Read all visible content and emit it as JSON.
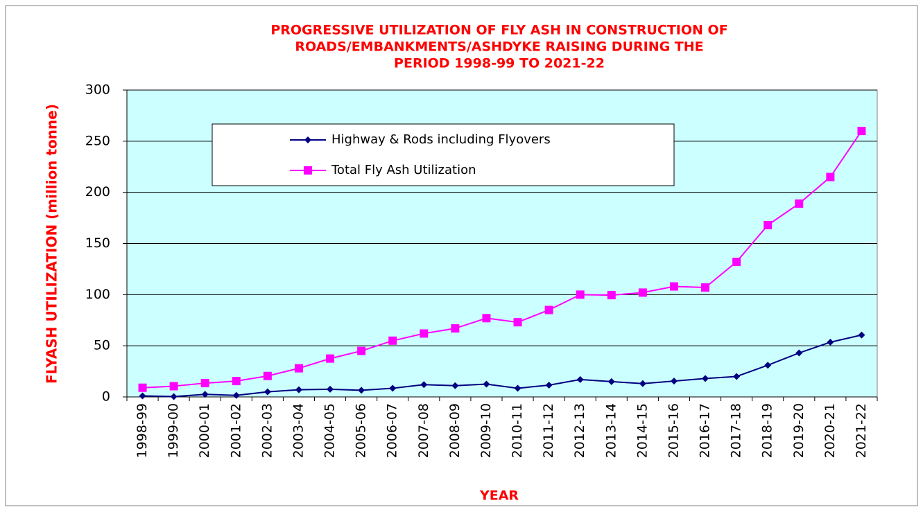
{
  "chart_data": {
    "type": "line",
    "title": [
      "PROGRESSIVE UTILIZATION OF FLY ASH IN CONSTRUCTION OF",
      "ROADS/EMBANKMENTS/ASHDYKE RAISING DURING THE",
      "PERIOD 1998-99 TO 2021-22"
    ],
    "x_label": "YEAR",
    "y_label": "FLYASH UTILIZATION (million tonne)",
    "categories": [
      "1998-99",
      "1999-00",
      "2000-01",
      "2001-02",
      "2002-03",
      "2003-04",
      "2004-05",
      "2005-06",
      "2006-07",
      "2007-08",
      "2008-09",
      "2009-10",
      "2010-11",
      "2011-12",
      "2012-13",
      "2013-14",
      "2014-15",
      "2015-16",
      "2016-17",
      "2017-18",
      "2018-19",
      "2019-20",
      "2020-21",
      "2021-22"
    ],
    "series": [
      {
        "name": "Highway & Rods including Flyovers",
        "color": "#000080",
        "marker": "diamond",
        "values": [
          1,
          0.3,
          2.5,
          1.5,
          5,
          7,
          7.5,
          6.5,
          8.5,
          12,
          11,
          12.5,
          8.5,
          11.5,
          17,
          15,
          13,
          15.5,
          18,
          20,
          31,
          43,
          53.5,
          60.5
        ]
      },
      {
        "name": "Total Fly Ash Utilization",
        "color": "#FF00FF",
        "marker": "square",
        "values": [
          9,
          10.5,
          13.5,
          15.5,
          20.5,
          28,
          37.5,
          45,
          55,
          62,
          67,
          77,
          73,
          85,
          100,
          99.5,
          102,
          108,
          107,
          132,
          168,
          189,
          215,
          260
        ]
      }
    ],
    "ylim": [
      0,
      300
    ],
    "yticks": [
      0,
      50,
      100,
      150,
      200,
      250,
      300
    ],
    "grid": true,
    "plot_background": "#CCFFFF"
  }
}
